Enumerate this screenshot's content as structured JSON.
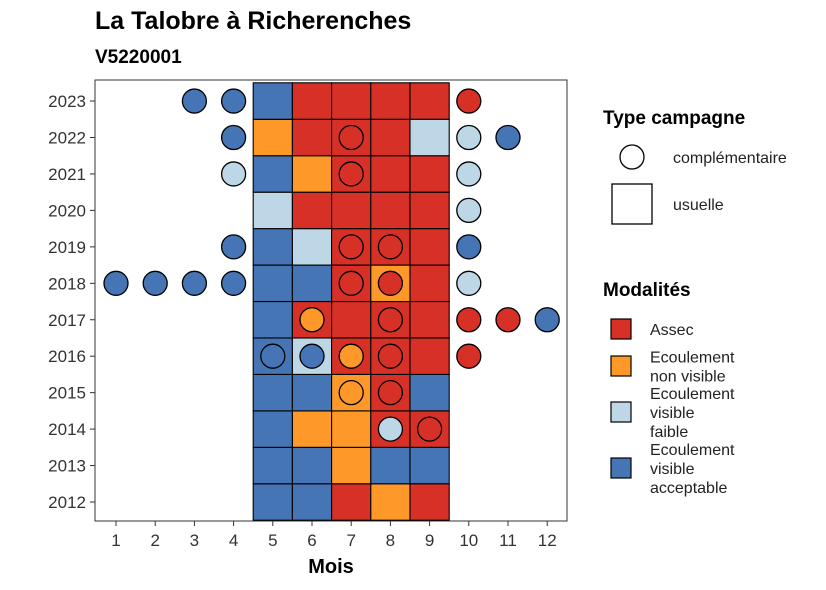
{
  "chart_data": {
    "type": "heatmap",
    "title": "La Talobre à Richerenches",
    "subtitle": "V5220001",
    "xlabel": "Mois",
    "ylabel": "",
    "x_ticks": [
      1,
      2,
      3,
      4,
      5,
      6,
      7,
      8,
      9,
      10,
      11,
      12
    ],
    "y_ticks": [
      2012,
      2013,
      2014,
      2015,
      2016,
      2017,
      2018,
      2019,
      2020,
      2021,
      2022,
      2023
    ],
    "colors": {
      "assec": "#d73027",
      "ecoulement_non_visible": "#fe9929",
      "ecoulement_visible_faible": "#bdd7e7",
      "ecoulement_visible_acceptable": "#4575b4"
    },
    "legend_type": {
      "title": "Type campagne",
      "items": [
        {
          "key": "complementaire",
          "label": "complémentaire",
          "shape": "circle"
        },
        {
          "key": "usuelle",
          "label": "usuelle",
          "shape": "square"
        }
      ]
    },
    "legend_modalites": {
      "title": "Modalités",
      "items": [
        {
          "key": "assec",
          "lines": [
            "Assec"
          ]
        },
        {
          "key": "ecoulement_non_visible",
          "lines": [
            "Ecoulement",
            "non visible"
          ]
        },
        {
          "key": "ecoulement_visible_faible",
          "lines": [
            "Ecoulement",
            "visible",
            "faible"
          ]
        },
        {
          "key": "ecoulement_visible_acceptable",
          "lines": [
            "Ecoulement",
            "visible",
            "acceptable"
          ]
        }
      ]
    },
    "usuelle": [
      {
        "year": 2012,
        "months": {
          "5": "ecoulement_visible_acceptable",
          "6": "ecoulement_visible_acceptable",
          "7": "assec",
          "8": "ecoulement_non_visible",
          "9": "assec"
        }
      },
      {
        "year": 2013,
        "months": {
          "5": "ecoulement_visible_acceptable",
          "6": "ecoulement_visible_acceptable",
          "7": "ecoulement_non_visible",
          "8": "ecoulement_visible_acceptable",
          "9": "ecoulement_visible_acceptable"
        }
      },
      {
        "year": 2014,
        "months": {
          "5": "ecoulement_visible_acceptable",
          "6": "ecoulement_non_visible",
          "7": "ecoulement_non_visible",
          "8": "assec",
          "9": "assec"
        }
      },
      {
        "year": 2015,
        "months": {
          "5": "ecoulement_visible_acceptable",
          "6": "ecoulement_visible_acceptable",
          "7": "ecoulement_non_visible",
          "8": "assec",
          "9": "ecoulement_visible_acceptable"
        }
      },
      {
        "year": 2016,
        "months": {
          "5": "ecoulement_visible_acceptable",
          "6": "ecoulement_visible_faible",
          "7": "assec",
          "8": "assec",
          "9": "assec"
        }
      },
      {
        "year": 2017,
        "months": {
          "5": "ecoulement_visible_acceptable",
          "6": "assec",
          "7": "assec",
          "8": "assec",
          "9": "assec"
        }
      },
      {
        "year": 2018,
        "months": {
          "5": "ecoulement_visible_acceptable",
          "6": "ecoulement_visible_acceptable",
          "7": "assec",
          "8": "ecoulement_non_visible",
          "9": "assec"
        }
      },
      {
        "year": 2019,
        "months": {
          "5": "ecoulement_visible_acceptable",
          "6": "ecoulement_visible_faible",
          "7": "assec",
          "8": "assec",
          "9": "assec"
        }
      },
      {
        "year": 2020,
        "months": {
          "5": "ecoulement_visible_faible",
          "6": "assec",
          "7": "assec",
          "8": "assec",
          "9": "assec"
        }
      },
      {
        "year": 2021,
        "months": {
          "5": "ecoulement_visible_acceptable",
          "6": "ecoulement_non_visible",
          "7": "assec",
          "8": "assec",
          "9": "assec"
        }
      },
      {
        "year": 2022,
        "months": {
          "5": "ecoulement_non_visible",
          "6": "assec",
          "7": "assec",
          "8": "assec",
          "9": "ecoulement_visible_faible"
        }
      },
      {
        "year": 2023,
        "months": {
          "5": "ecoulement_visible_acceptable",
          "6": "assec",
          "7": "assec",
          "8": "assec",
          "9": "assec"
        }
      }
    ],
    "complementaire": [
      {
        "year": 2023,
        "month": 3,
        "modalite": "ecoulement_visible_acceptable"
      },
      {
        "year": 2023,
        "month": 4,
        "modalite": "ecoulement_visible_acceptable"
      },
      {
        "year": 2023,
        "month": 10,
        "modalite": "assec"
      },
      {
        "year": 2022,
        "month": 4,
        "modalite": "ecoulement_visible_acceptable"
      },
      {
        "year": 2022,
        "month": 7,
        "modalite": "assec"
      },
      {
        "year": 2022,
        "month": 10,
        "modalite": "ecoulement_visible_faible"
      },
      {
        "year": 2022,
        "month": 11,
        "modalite": "ecoulement_visible_acceptable"
      },
      {
        "year": 2021,
        "month": 4,
        "modalite": "ecoulement_visible_faible"
      },
      {
        "year": 2021,
        "month": 7,
        "modalite": "assec"
      },
      {
        "year": 2021,
        "month": 10,
        "modalite": "ecoulement_visible_faible"
      },
      {
        "year": 2020,
        "month": 10,
        "modalite": "ecoulement_visible_faible"
      },
      {
        "year": 2019,
        "month": 4,
        "modalite": "ecoulement_visible_acceptable"
      },
      {
        "year": 2019,
        "month": 7,
        "modalite": "assec"
      },
      {
        "year": 2019,
        "month": 8,
        "modalite": "assec"
      },
      {
        "year": 2019,
        "month": 10,
        "modalite": "ecoulement_visible_acceptable"
      },
      {
        "year": 2018,
        "month": 1,
        "modalite": "ecoulement_visible_acceptable"
      },
      {
        "year": 2018,
        "month": 2,
        "modalite": "ecoulement_visible_acceptable"
      },
      {
        "year": 2018,
        "month": 3,
        "modalite": "ecoulement_visible_acceptable"
      },
      {
        "year": 2018,
        "month": 4,
        "modalite": "ecoulement_visible_acceptable"
      },
      {
        "year": 2018,
        "month": 7,
        "modalite": "assec"
      },
      {
        "year": 2018,
        "month": 8,
        "modalite": "assec"
      },
      {
        "year": 2018,
        "month": 10,
        "modalite": "ecoulement_visible_faible"
      },
      {
        "year": 2017,
        "month": 6,
        "modalite": "ecoulement_non_visible"
      },
      {
        "year": 2017,
        "month": 8,
        "modalite": "assec"
      },
      {
        "year": 2017,
        "month": 10,
        "modalite": "assec"
      },
      {
        "year": 2017,
        "month": 11,
        "modalite": "assec"
      },
      {
        "year": 2017,
        "month": 12,
        "modalite": "ecoulement_visible_acceptable"
      },
      {
        "year": 2016,
        "month": 5,
        "modalite": "ecoulement_visible_acceptable"
      },
      {
        "year": 2016,
        "month": 6,
        "modalite": "ecoulement_visible_acceptable"
      },
      {
        "year": 2016,
        "month": 7,
        "modalite": "ecoulement_non_visible"
      },
      {
        "year": 2016,
        "month": 8,
        "modalite": "assec"
      },
      {
        "year": 2016,
        "month": 10,
        "modalite": "assec"
      },
      {
        "year": 2015,
        "month": 7,
        "modalite": "ecoulement_non_visible"
      },
      {
        "year": 2015,
        "month": 8,
        "modalite": "assec"
      },
      {
        "year": 2014,
        "month": 8,
        "modalite": "ecoulement_visible_faible"
      },
      {
        "year": 2014,
        "month": 9,
        "modalite": "assec"
      }
    ]
  }
}
